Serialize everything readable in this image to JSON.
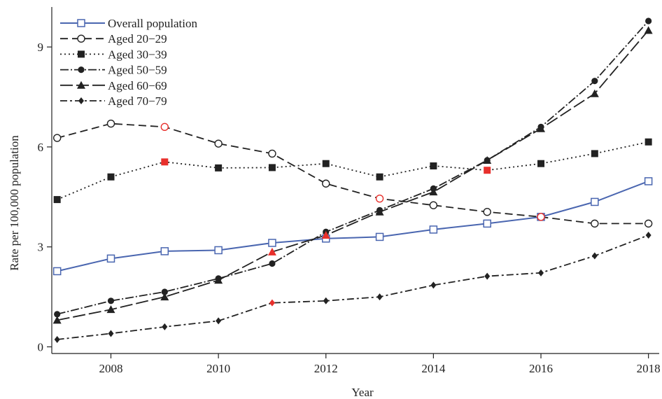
{
  "chart_data": {
    "type": "line",
    "title": "",
    "xlabel": "Year",
    "ylabel": "Rate per 100,000 population",
    "xlim": [
      2006.9,
      2018.2
    ],
    "ylim": [
      -0.2,
      10.2
    ],
    "xticks": [
      2008,
      2010,
      2012,
      2014,
      2016,
      2018
    ],
    "yticks": [
      0,
      3,
      6,
      9
    ],
    "grid": false,
    "legend_position": "top-left",
    "x": [
      2007,
      2008,
      2009,
      2010,
      2011,
      2012,
      2013,
      2014,
      2015,
      2016,
      2017,
      2018
    ],
    "highlight_color": "#e8302c",
    "series": [
      {
        "name": "Overall population",
        "marker": "open-square",
        "line": "solid",
        "color": "#4a66b0",
        "values": [
          2.27,
          2.65,
          2.87,
          2.9,
          3.12,
          3.25,
          3.3,
          3.52,
          3.7,
          3.9,
          4.35,
          4.97
        ],
        "highlight": []
      },
      {
        "name": "Aged 20−29",
        "marker": "open-circle",
        "line": "dashed",
        "color": "#222222",
        "values": [
          6.27,
          6.7,
          6.6,
          6.1,
          5.8,
          4.9,
          4.45,
          4.25,
          4.05,
          3.9,
          3.7,
          3.7
        ],
        "highlight": [
          2009,
          2013,
          2016
        ]
      },
      {
        "name": "Aged 30−39",
        "marker": "filled-square",
        "line": "dotted",
        "color": "#222222",
        "values": [
          4.42,
          5.1,
          5.55,
          5.37,
          5.38,
          5.5,
          5.1,
          5.43,
          5.3,
          5.5,
          5.8,
          6.15
        ],
        "highlight": [
          2009,
          2015
        ]
      },
      {
        "name": "Aged 50−59",
        "marker": "filled-circle",
        "line": "dashdot-dense",
        "color": "#222222",
        "values": [
          0.98,
          1.38,
          1.65,
          2.05,
          2.5,
          3.45,
          4.1,
          4.75,
          5.6,
          6.6,
          7.98,
          9.78
        ],
        "highlight": []
      },
      {
        "name": "Aged 60−69",
        "marker": "filled-triangle",
        "line": "longdash",
        "color": "#222222",
        "values": [
          0.8,
          1.12,
          1.5,
          2.0,
          2.85,
          3.35,
          4.05,
          4.65,
          5.6,
          6.55,
          7.6,
          9.5
        ],
        "highlight": [
          2011,
          2012
        ]
      },
      {
        "name": "Aged 70−79",
        "marker": "filled-diamond",
        "line": "dashdot",
        "color": "#222222",
        "values": [
          0.22,
          0.4,
          0.6,
          0.78,
          1.32,
          1.38,
          1.5,
          1.85,
          2.12,
          2.22,
          2.73,
          3.35
        ],
        "highlight": [
          2011
        ]
      }
    ]
  }
}
